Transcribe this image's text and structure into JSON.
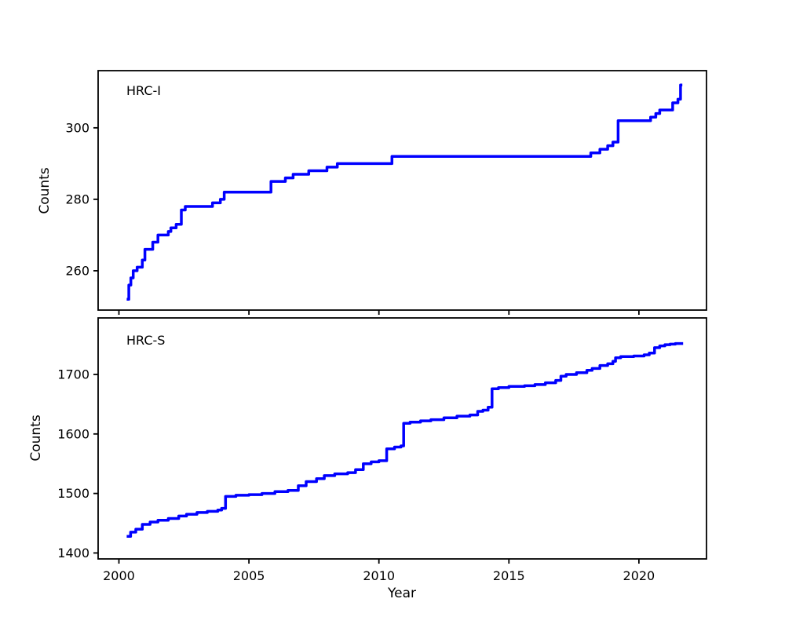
{
  "figure": {
    "xlabel": "Year",
    "background": "#ffffff",
    "axes_color": "#000000",
    "line_color": "#0000ff",
    "line_width": 3.5,
    "xlim": [
      1999.2,
      2022.6
    ],
    "xticks": [
      2000,
      2005,
      2010,
      2015,
      2020
    ],
    "legend": "none",
    "grid": false
  },
  "chart_data": [
    {
      "type": "line",
      "style": "step-after",
      "label": "HRC-I",
      "ylabel": "Counts",
      "ylim": [
        249,
        316
      ],
      "yticks": [
        260,
        280,
        300
      ],
      "points": [
        [
          2000.3,
          252
        ],
        [
          2000.38,
          256
        ],
        [
          2000.46,
          258
        ],
        [
          2000.55,
          260
        ],
        [
          2000.7,
          261
        ],
        [
          2000.9,
          263
        ],
        [
          2001.0,
          266
        ],
        [
          2001.3,
          268
        ],
        [
          2001.5,
          270
        ],
        [
          2001.9,
          271
        ],
        [
          2002.0,
          272
        ],
        [
          2002.2,
          273
        ],
        [
          2002.4,
          277
        ],
        [
          2002.55,
          278
        ],
        [
          2003.6,
          279
        ],
        [
          2003.9,
          280
        ],
        [
          2004.05,
          282
        ],
        [
          2005.85,
          285
        ],
        [
          2006.4,
          286
        ],
        [
          2006.7,
          287
        ],
        [
          2007.3,
          288
        ],
        [
          2008.0,
          289
        ],
        [
          2008.4,
          290
        ],
        [
          2009.0,
          290
        ],
        [
          2010.5,
          292
        ],
        [
          2018.0,
          292
        ],
        [
          2018.15,
          293
        ],
        [
          2018.5,
          294
        ],
        [
          2018.8,
          295
        ],
        [
          2019.0,
          296
        ],
        [
          2019.2,
          302
        ],
        [
          2020.45,
          303
        ],
        [
          2020.65,
          304
        ],
        [
          2020.8,
          305
        ],
        [
          2021.3,
          307
        ],
        [
          2021.5,
          308
        ],
        [
          2021.6,
          312
        ],
        [
          2021.67,
          312
        ]
      ]
    },
    {
      "type": "line",
      "style": "step-after",
      "label": "HRC-S",
      "ylabel": "Counts",
      "ylim": [
        1390,
        1795
      ],
      "yticks": [
        1400,
        1500,
        1600,
        1700
      ],
      "points": [
        [
          2000.3,
          1428
        ],
        [
          2000.45,
          1435
        ],
        [
          2000.65,
          1440
        ],
        [
          2000.9,
          1448
        ],
        [
          2001.2,
          1452
        ],
        [
          2001.5,
          1455
        ],
        [
          2001.9,
          1458
        ],
        [
          2002.3,
          1462
        ],
        [
          2002.6,
          1465
        ],
        [
          2003.0,
          1468
        ],
        [
          2003.4,
          1470
        ],
        [
          2003.8,
          1472
        ],
        [
          2003.95,
          1475
        ],
        [
          2004.1,
          1495
        ],
        [
          2004.5,
          1497
        ],
        [
          2005.0,
          1498
        ],
        [
          2005.5,
          1500
        ],
        [
          2006.0,
          1503
        ],
        [
          2006.5,
          1505
        ],
        [
          2006.9,
          1513
        ],
        [
          2007.2,
          1520
        ],
        [
          2007.6,
          1525
        ],
        [
          2007.9,
          1530
        ],
        [
          2008.3,
          1533
        ],
        [
          2008.8,
          1535
        ],
        [
          2009.1,
          1540
        ],
        [
          2009.4,
          1550
        ],
        [
          2009.7,
          1553
        ],
        [
          2010.0,
          1555
        ],
        [
          2010.3,
          1575
        ],
        [
          2010.6,
          1578
        ],
        [
          2010.85,
          1580
        ],
        [
          2010.95,
          1618
        ],
        [
          2011.2,
          1620
        ],
        [
          2011.6,
          1622
        ],
        [
          2012.0,
          1624
        ],
        [
          2012.5,
          1627
        ],
        [
          2013.0,
          1630
        ],
        [
          2013.5,
          1632
        ],
        [
          2013.8,
          1638
        ],
        [
          2014.0,
          1640
        ],
        [
          2014.2,
          1645
        ],
        [
          2014.35,
          1676
        ],
        [
          2014.6,
          1678
        ],
        [
          2015.0,
          1680
        ],
        [
          2015.6,
          1681
        ],
        [
          2016.0,
          1683
        ],
        [
          2016.4,
          1686
        ],
        [
          2016.8,
          1690
        ],
        [
          2017.0,
          1697
        ],
        [
          2017.2,
          1700
        ],
        [
          2017.6,
          1703
        ],
        [
          2018.0,
          1707
        ],
        [
          2018.2,
          1710
        ],
        [
          2018.5,
          1715
        ],
        [
          2018.8,
          1718
        ],
        [
          2019.0,
          1722
        ],
        [
          2019.1,
          1728
        ],
        [
          2019.3,
          1730
        ],
        [
          2019.8,
          1731
        ],
        [
          2020.2,
          1733
        ],
        [
          2020.4,
          1736
        ],
        [
          2020.6,
          1745
        ],
        [
          2020.8,
          1748
        ],
        [
          2021.0,
          1750
        ],
        [
          2021.2,
          1751
        ],
        [
          2021.4,
          1752
        ],
        [
          2021.7,
          1752
        ]
      ]
    }
  ]
}
